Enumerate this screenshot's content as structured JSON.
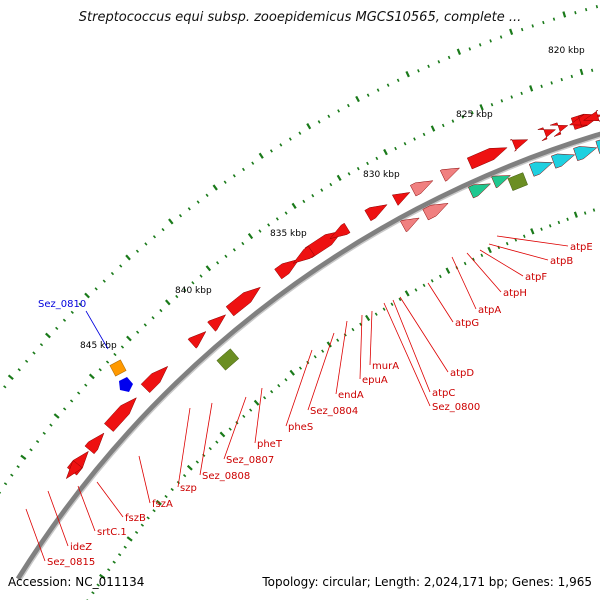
{
  "title": "Streptococcus equi subsp. zooepidemicus MGCS10565, complete ...",
  "footer": {
    "accession": "Accession: NC_011134",
    "summary": "Topology: circular; Length: 2,024,171 bp; Genes: 1,965"
  },
  "colors": {
    "backbone": "#808080",
    "label_line": "#dd0000",
    "label_text": "#cc0000",
    "highlight": "#0000dd",
    "tick": "#1a7a1a"
  },
  "kbp_ticks": [
    "820 kbp",
    "825 kbp",
    "830 kbp",
    "835 kbp",
    "840 kbp",
    "845 kbp"
  ],
  "gene_labels": [
    {
      "text": "atpE",
      "color": "red"
    },
    {
      "text": "atpB",
      "color": "red"
    },
    {
      "text": "atpF",
      "color": "red"
    },
    {
      "text": "atpH",
      "color": "red"
    },
    {
      "text": "atpA",
      "color": "red"
    },
    {
      "text": "atpG",
      "color": "red"
    },
    {
      "text": "atpD",
      "color": "red"
    },
    {
      "text": "atpC",
      "color": "red"
    },
    {
      "text": "Sez_0800",
      "color": "red"
    },
    {
      "text": "murA",
      "color": "red"
    },
    {
      "text": "epuA",
      "color": "red"
    },
    {
      "text": "endA",
      "color": "red"
    },
    {
      "text": "Sez_0804",
      "color": "red"
    },
    {
      "text": "pheS",
      "color": "red"
    },
    {
      "text": "pheT",
      "color": "red"
    },
    {
      "text": "Sez_0807",
      "color": "red"
    },
    {
      "text": "Sez_0808",
      "color": "red"
    },
    {
      "text": "szp",
      "color": "red"
    },
    {
      "text": "fszA",
      "color": "red"
    },
    {
      "text": "fszB",
      "color": "red"
    },
    {
      "text": "srtC.1",
      "color": "red"
    },
    {
      "text": "ideZ",
      "color": "red"
    },
    {
      "text": "Sez_0815",
      "color": "red"
    },
    {
      "text": "Sez_0810",
      "color": "blue"
    }
  ]
}
